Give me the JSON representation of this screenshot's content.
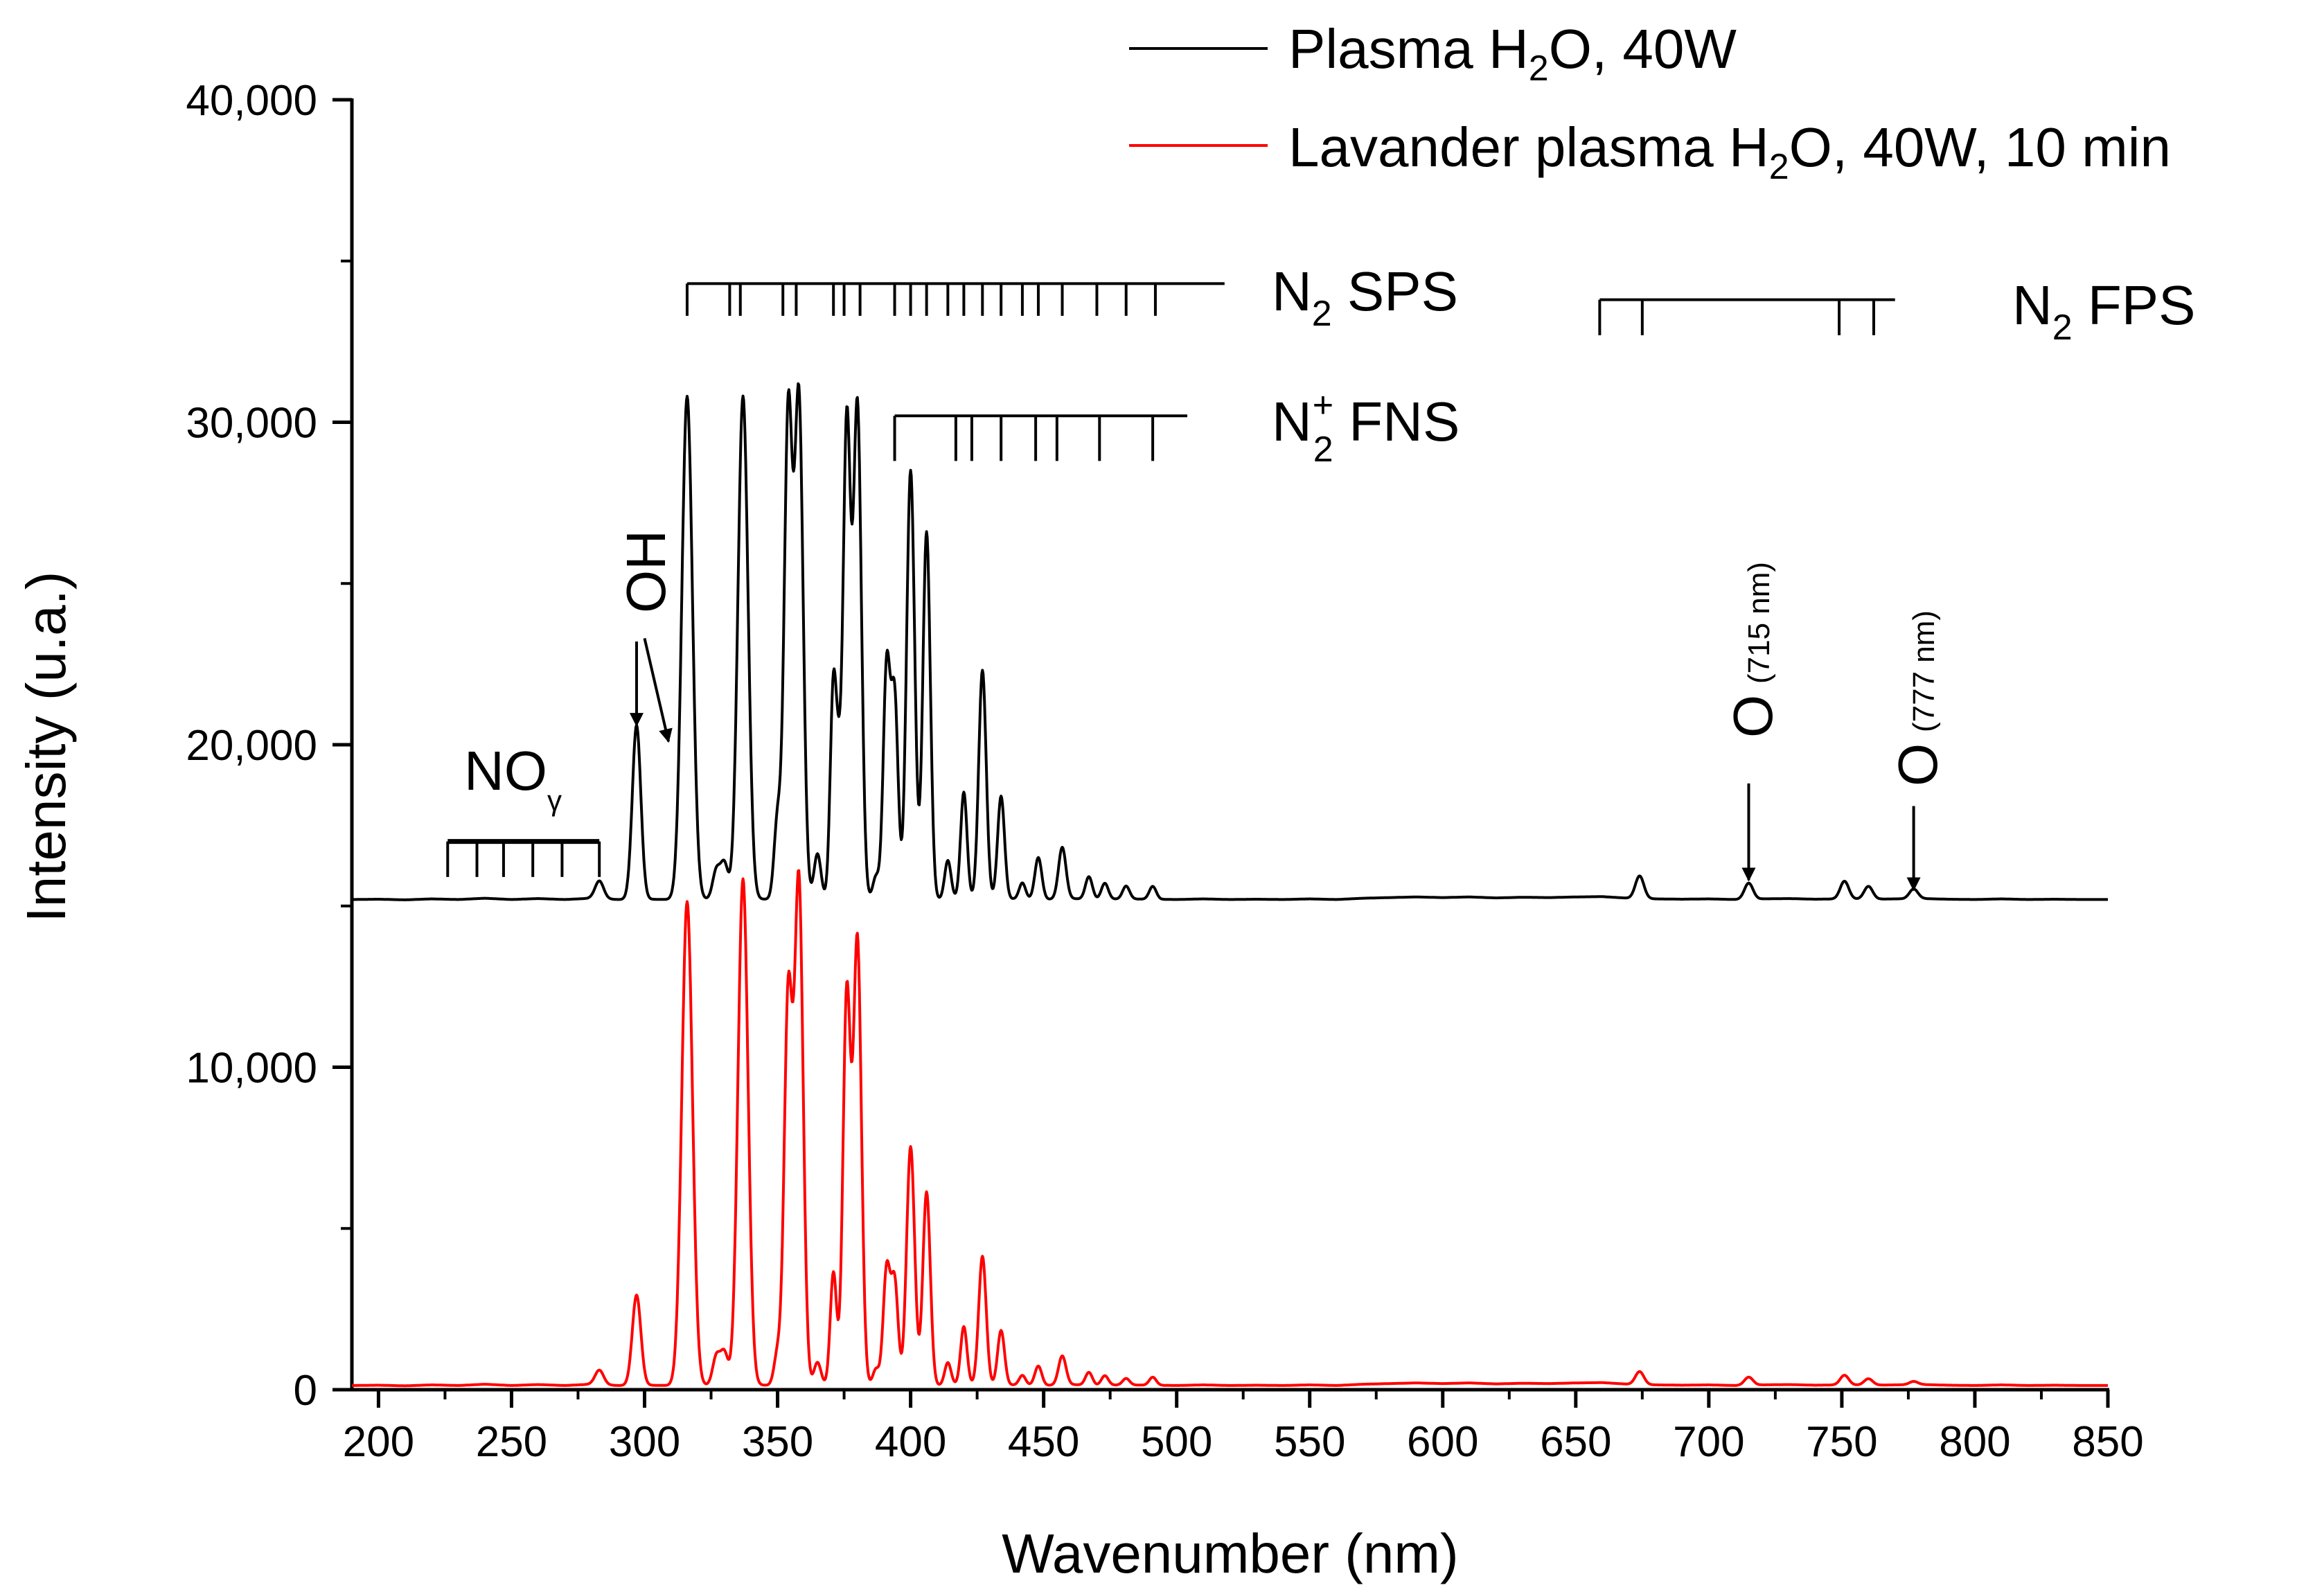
{
  "chart_data": {
    "type": "line",
    "title": "",
    "xlabel": "Wavenumber (nm)",
    "ylabel": "Intensity (u.a.)",
    "xlim": [
      190,
      850
    ],
    "ylim": [
      0,
      40000
    ],
    "xticks": [
      200,
      250,
      300,
      350,
      400,
      450,
      500,
      550,
      600,
      650,
      700,
      750,
      800,
      850
    ],
    "yticks_labeled": [
      0,
      10000,
      20000,
      30000,
      40000
    ],
    "ytick_labels": [
      "0",
      "10,000",
      "20,000",
      "30,000",
      "40,000"
    ],
    "yticks_minor": [
      5000,
      15000,
      25000,
      35000
    ],
    "legend_position": "top-right",
    "baseline_noise": [
      [
        190,
        0
      ],
      [
        200,
        10
      ],
      [
        210,
        -10
      ],
      [
        220,
        20
      ],
      [
        230,
        0
      ],
      [
        240,
        40
      ],
      [
        250,
        0
      ],
      [
        260,
        30
      ],
      [
        270,
        0
      ],
      [
        280,
        40
      ],
      [
        290,
        0
      ],
      [
        300,
        10
      ],
      [
        310,
        0
      ],
      [
        320,
        10
      ],
      [
        330,
        0
      ],
      [
        340,
        20
      ],
      [
        350,
        0
      ],
      [
        360,
        30
      ],
      [
        370,
        10
      ],
      [
        380,
        20
      ],
      [
        390,
        0
      ],
      [
        400,
        10
      ],
      [
        410,
        0
      ],
      [
        420,
        30
      ],
      [
        430,
        0
      ],
      [
        440,
        20
      ],
      [
        450,
        0
      ],
      [
        460,
        30
      ],
      [
        470,
        0
      ],
      [
        480,
        20
      ],
      [
        490,
        10
      ],
      [
        500,
        0
      ],
      [
        510,
        20
      ],
      [
        520,
        0
      ],
      [
        530,
        10
      ],
      [
        540,
        0
      ],
      [
        550,
        20
      ],
      [
        560,
        0
      ],
      [
        570,
        40
      ],
      [
        580,
        60
      ],
      [
        590,
        80
      ],
      [
        600,
        60
      ],
      [
        610,
        80
      ],
      [
        620,
        50
      ],
      [
        630,
        70
      ],
      [
        640,
        60
      ],
      [
        650,
        80
      ],
      [
        660,
        90
      ],
      [
        670,
        40
      ],
      [
        680,
        20
      ],
      [
        690,
        10
      ],
      [
        700,
        20
      ],
      [
        710,
        0
      ],
      [
        720,
        20
      ],
      [
        730,
        30
      ],
      [
        740,
        10
      ],
      [
        750,
        20
      ],
      [
        760,
        10
      ],
      [
        770,
        20
      ],
      [
        780,
        30
      ],
      [
        790,
        10
      ],
      [
        800,
        0
      ],
      [
        810,
        20
      ],
      [
        820,
        0
      ],
      [
        830,
        10
      ],
      [
        840,
        0
      ],
      [
        850,
        0
      ]
    ],
    "series": [
      {
        "name": "Plasma H2O, 40W",
        "color": "#000000",
        "baseline": 15200,
        "peaks": [
          [
            283,
            550,
            1.6
          ],
          [
            297,
            5400,
            1.6
          ],
          [
            316,
            15600,
            2.0
          ],
          [
            327,
            900,
            1.4
          ],
          [
            330,
            1100,
            1.4
          ],
          [
            337,
            15600,
            1.9
          ],
          [
            350,
            2500,
            1.3
          ],
          [
            354,
            15000,
            1.5
          ],
          [
            358,
            15500,
            1.6
          ],
          [
            365,
            1400,
            1.3
          ],
          [
            371,
            6700,
            1.2
          ],
          [
            373,
            2500,
            1.0
          ],
          [
            376,
            14800,
            1.4
          ],
          [
            380,
            15300,
            1.5
          ],
          [
            387,
            700,
            1.2
          ],
          [
            391,
            7200,
            1.3
          ],
          [
            394,
            6200,
            1.3
          ],
          [
            400,
            13300,
            1.5
          ],
          [
            406,
            11400,
            1.4
          ],
          [
            414,
            1200,
            1.2
          ],
          [
            420,
            3300,
            1.2
          ],
          [
            427,
            7100,
            1.4
          ],
          [
            434,
            3200,
            1.3
          ],
          [
            442,
            500,
            1.2
          ],
          [
            448,
            1300,
            1.3
          ],
          [
            457,
            1600,
            1.4
          ],
          [
            467,
            700,
            1.3
          ],
          [
            473,
            500,
            1.3
          ],
          [
            481,
            400,
            1.3
          ],
          [
            491,
            400,
            1.3
          ],
          [
            674,
            700,
            1.6
          ],
          [
            715,
            500,
            1.6
          ],
          [
            751,
            550,
            1.6
          ],
          [
            760,
            400,
            1.6
          ],
          [
            777,
            300,
            1.6
          ]
        ]
      },
      {
        "name": "Lavander plasma H2O, 40W, 10 min",
        "color": "#ff0000",
        "baseline": 130,
        "peaks": [
          [
            283,
            450,
            1.6
          ],
          [
            297,
            2800,
            1.6
          ],
          [
            316,
            15000,
            2.0
          ],
          [
            327,
            900,
            1.4
          ],
          [
            330,
            1000,
            1.4
          ],
          [
            337,
            15700,
            1.9
          ],
          [
            350,
            1000,
            1.3
          ],
          [
            354,
            12000,
            1.5
          ],
          [
            358,
            15600,
            1.6
          ],
          [
            365,
            700,
            1.3
          ],
          [
            371,
            3500,
            1.2
          ],
          [
            376,
            12100,
            1.4
          ],
          [
            380,
            13800,
            1.5
          ],
          [
            387,
            500,
            1.2
          ],
          [
            391,
            3600,
            1.3
          ],
          [
            394,
            3200,
            1.3
          ],
          [
            400,
            7400,
            1.5
          ],
          [
            406,
            6000,
            1.4
          ],
          [
            414,
            700,
            1.2
          ],
          [
            420,
            1800,
            1.2
          ],
          [
            427,
            4000,
            1.4
          ],
          [
            434,
            1700,
            1.3
          ],
          [
            442,
            300,
            1.2
          ],
          [
            448,
            600,
            1.3
          ],
          [
            457,
            900,
            1.4
          ],
          [
            467,
            400,
            1.3
          ],
          [
            473,
            300,
            1.3
          ],
          [
            481,
            200,
            1.3
          ],
          [
            491,
            250,
            1.3
          ],
          [
            674,
            400,
            1.6
          ],
          [
            715,
            250,
            1.6
          ],
          [
            751,
            300,
            1.6
          ],
          [
            760,
            200,
            1.6
          ],
          [
            777,
            100,
            1.6
          ]
        ]
      }
    ],
    "band_markers": [
      {
        "name": "N2 SPS",
        "y": 34300,
        "x_start": 316,
        "x_end": 518,
        "tick_bottom": 33300,
        "ticks": [
          316,
          332,
          336,
          352,
          357,
          371,
          375,
          381,
          394,
          400,
          406,
          414,
          420,
          427,
          434,
          442,
          448,
          457,
          470,
          481,
          492
        ]
      },
      {
        "name": "N2+ FNS",
        "y": 30200,
        "x_start": 394,
        "x_end": 504,
        "tick_bottom": 28800,
        "ticks": [
          394,
          417,
          423,
          434,
          447,
          455,
          471,
          491
        ]
      },
      {
        "name": "N2 FPS",
        "y": 33800,
        "x_start": 659,
        "x_end": 770,
        "tick_bottom": 32700,
        "ticks": [
          659,
          675,
          749,
          762
        ]
      },
      {
        "name": "NOgamma",
        "y": 17000,
        "x_start": 226,
        "x_end": 283,
        "tick_bottom": 15900,
        "ticks": [
          226,
          237,
          247,
          258,
          269,
          283
        ]
      }
    ],
    "arrows": [
      {
        "from": [
          297,
          23200
        ],
        "to": [
          297,
          20600
        ]
      },
      {
        "from": [
          300,
          23300
        ],
        "to": [
          309,
          20100
        ]
      },
      {
        "from": [
          715,
          18800
        ],
        "to": [
          715,
          15800
        ]
      },
      {
        "from": [
          777,
          18100
        ],
        "to": [
          777,
          15500
        ]
      }
    ]
  },
  "legend": {
    "entries": [
      {
        "main": "Plasma H",
        "sub": "2",
        "rest": "O, 40W"
      },
      {
        "main": "Lavander plasma H",
        "sub": "2",
        "rest": "O, 40W, 10 min"
      }
    ]
  },
  "annotations": {
    "n2_sps": {
      "main": "N",
      "sub": "2",
      "rest": " SPS"
    },
    "n2p_fns": {
      "main": "N",
      "sub": "2",
      "sup": "+",
      "rest": " FNS"
    },
    "n2_fps": {
      "main": "N",
      "sub": "2",
      "rest": " FPS"
    },
    "no_gamma": {
      "main": "NO",
      "sub": "γ"
    },
    "oh": "OH",
    "o715": {
      "main": "O",
      "detail": "(715 nm)"
    },
    "o777": {
      "main": "O",
      "detail": "(777 nm)"
    }
  }
}
